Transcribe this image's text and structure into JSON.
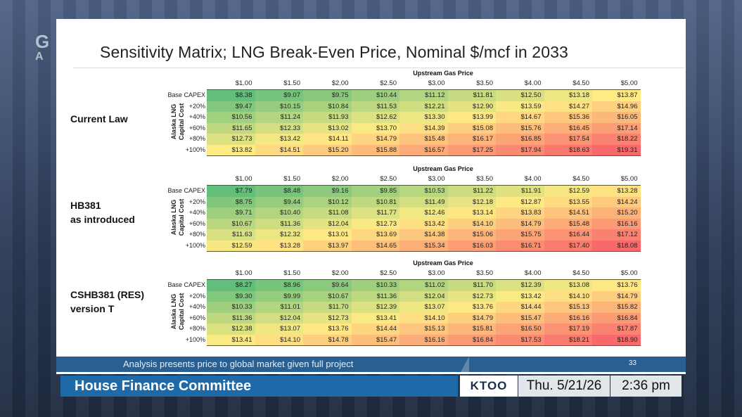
{
  "background": {
    "logo_text": "G\nA"
  },
  "slide": {
    "title": "Sensitivity Matrix; LNG Break-Even Price, Nominal $/mcf in 2033",
    "page_number": "33",
    "footer_text": "Analysis presents price to global market given full project"
  },
  "lower_third": {
    "committee": "House Finance Committee",
    "station": "KTOO",
    "date": "Thu. 5/21/26",
    "time": "2:36 pm"
  },
  "colors": {
    "low": "#63be7b",
    "mid": "#ffeb84",
    "high": "#f8696b",
    "footer": "#2a5f92",
    "lower_third": "#1e69a8"
  },
  "matrices": [
    {
      "section_label": [
        "Current Law"
      ],
      "axis_label": [
        "Alaska LNG",
        "Capital Cost"
      ],
      "upstream_label": "Upstream Gas Price",
      "columns": [
        "$1.00",
        "$1.50",
        "$2.00",
        "$2.50",
        "$3.00",
        "$3.50",
        "$4.00",
        "$4.50",
        "$5.00"
      ],
      "rows": [
        {
          "label": "Base CAPEX",
          "values": [
            "$8.38",
            "$9.07",
            "$9.75",
            "$10.44",
            "$11.12",
            "$11.81",
            "$12.50",
            "$13.18",
            "$13.87"
          ]
        },
        {
          "label": "+20%",
          "values": [
            "$9.47",
            "$10.15",
            "$10.84",
            "$11.53",
            "$12.21",
            "$12.90",
            "$13.59",
            "$14.27",
            "$14.96"
          ]
        },
        {
          "label": "+40%",
          "values": [
            "$10.56",
            "$11.24",
            "$11.93",
            "$12.62",
            "$13.30",
            "$13.99",
            "$14.67",
            "$15.36",
            "$16.05"
          ]
        },
        {
          "label": "+60%",
          "values": [
            "$11.65",
            "$12.33",
            "$13.02",
            "$13.70",
            "$14.39",
            "$15.08",
            "$15.76",
            "$16.45",
            "$17.14"
          ]
        },
        {
          "label": "+80%",
          "values": [
            "$12.73",
            "$13.42",
            "$14.11",
            "$14.79",
            "$15.48",
            "$16.17",
            "$16.85",
            "$17.54",
            "$18.22"
          ]
        },
        {
          "label": "+100%",
          "values": [
            "$13.82",
            "$14.51",
            "$15.20",
            "$15.88",
            "$16.57",
            "$17.25",
            "$17.94",
            "$18.63",
            "$19.31"
          ]
        }
      ]
    },
    {
      "section_label": [
        "HB381",
        "as introduced"
      ],
      "axis_label": [
        "Alaska LNG",
        "Capital Cost"
      ],
      "upstream_label": "Upstream Gas Price",
      "columns": [
        "$1.00",
        "$1.50",
        "$2.00",
        "$2.50",
        "$3.00",
        "$3.50",
        "$4.00",
        "$4.50",
        "$5.00"
      ],
      "rows": [
        {
          "label": "Base CAPEX",
          "values": [
            "$7.79",
            "$8.48",
            "$9.16",
            "$9.85",
            "$10.53",
            "$11.22",
            "$11.91",
            "$12.59",
            "$13.28"
          ]
        },
        {
          "label": "+20%",
          "values": [
            "$8.75",
            "$9.44",
            "$10.12",
            "$10.81",
            "$11.49",
            "$12.18",
            "$12.87",
            "$13.55",
            "$14.24"
          ]
        },
        {
          "label": "+40%",
          "values": [
            "$9.71",
            "$10.40",
            "$11.08",
            "$11.77",
            "$12.46",
            "$13.14",
            "$13.83",
            "$14.51",
            "$15.20"
          ]
        },
        {
          "label": "+60%",
          "values": [
            "$10.67",
            "$11.36",
            "$12.04",
            "$12.73",
            "$13.42",
            "$14.10",
            "$14.79",
            "$15.48",
            "$16.16"
          ]
        },
        {
          "label": "+80%",
          "values": [
            "$11.63",
            "$12.32",
            "$13.01",
            "$13.69",
            "$14.38",
            "$15.06",
            "$15.75",
            "$16.44",
            "$17.12"
          ]
        },
        {
          "label": "+100%",
          "values": [
            "$12.59",
            "$13.28",
            "$13.97",
            "$14.65",
            "$15.34",
            "$16.03",
            "$16.71",
            "$17.40",
            "$18.08"
          ]
        }
      ]
    },
    {
      "section_label": [
        "CSHB381 (RES)",
        "version T"
      ],
      "axis_label": [
        "Alaska LNG",
        "Capital Cost"
      ],
      "upstream_label": "Upstream Gas Price",
      "columns": [
        "$1.00",
        "$1.50",
        "$2.00",
        "$2.50",
        "$3.00",
        "$3.50",
        "$4.00",
        "$4.50",
        "$5.00"
      ],
      "rows": [
        {
          "label": "Base CAPEX",
          "values": [
            "$8.27",
            "$8.96",
            "$9.64",
            "$10.33",
            "$11.02",
            "$11.70",
            "$12.39",
            "$13.08",
            "$13.76"
          ]
        },
        {
          "label": "+20%",
          "values": [
            "$9.30",
            "$9.99",
            "$10.67",
            "$11.36",
            "$12.04",
            "$12.73",
            "$13.42",
            "$14.10",
            "$14.79"
          ]
        },
        {
          "label": "+40%",
          "values": [
            "$10.33",
            "$11.01",
            "$11.70",
            "$12.39",
            "$13.07",
            "$13.76",
            "$14.44",
            "$15.13",
            "$15.82"
          ]
        },
        {
          "label": "+60%",
          "values": [
            "$11.36",
            "$12.04",
            "$12.73",
            "$13.41",
            "$14.10",
            "$14.79",
            "$15.47",
            "$16.16",
            "$16.84"
          ]
        },
        {
          "label": "+80%",
          "values": [
            "$12.38",
            "$13.07",
            "$13.76",
            "$14.44",
            "$15.13",
            "$15.81",
            "$16.50",
            "$17.19",
            "$17.87"
          ]
        },
        {
          "label": "+100%",
          "values": [
            "$13.41",
            "$14.10",
            "$14.78",
            "$15.47",
            "$16.16",
            "$16.84",
            "$17.53",
            "$18.21",
            "$18.90"
          ]
        }
      ]
    }
  ]
}
